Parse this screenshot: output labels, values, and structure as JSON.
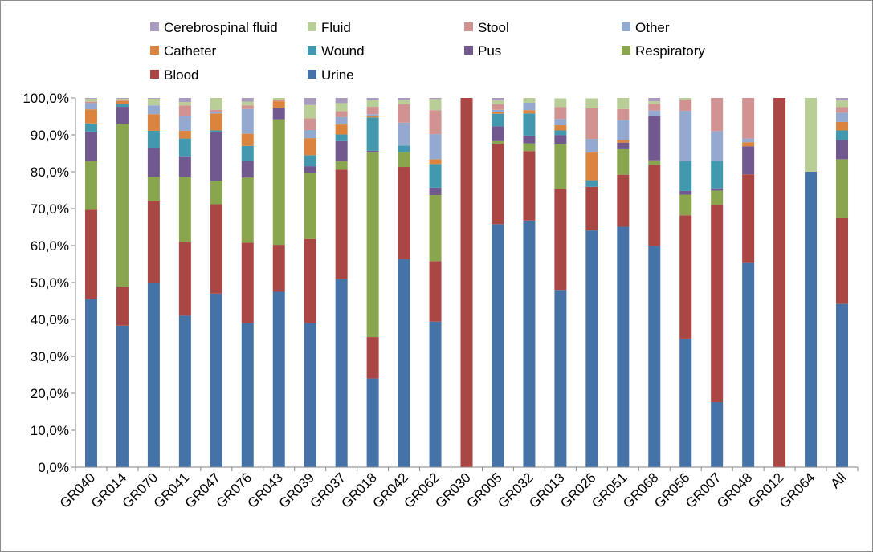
{
  "chart_data": {
    "type": "bar",
    "stacked": true,
    "title": "",
    "xlabel": "",
    "ylabel": "",
    "ylim": [
      0,
      100
    ],
    "ytick_step": 10,
    "ytick_format": "comma-decimal-percent",
    "grid": false,
    "legend_position": "top",
    "categories": [
      "GR040",
      "GR014",
      "GR070",
      "GR041",
      "GR047",
      "GR076",
      "GR043",
      "GR039",
      "GR037",
      "GR018",
      "GR042",
      "GR062",
      "GR030",
      "GR005",
      "GR032",
      "GR013",
      "GR026",
      "GR051",
      "GR068",
      "GR056",
      "GR007",
      "GR048",
      "GR012",
      "GR064",
      "All"
    ],
    "series": [
      {
        "name": "Urine",
        "color": "#4572a7",
        "values": [
          45.5,
          38.3,
          50.0,
          41.0,
          47.0,
          39.0,
          47.5,
          39.0,
          51.0,
          24.0,
          56.3,
          39.4,
          0,
          65.8,
          66.8,
          48.0,
          64.1,
          65.1,
          59.9,
          34.8,
          17.6,
          55.3,
          0,
          80.0,
          44.2
        ]
      },
      {
        "name": "Blood",
        "color": "#aa4643",
        "values": [
          24.2,
          10.6,
          22.0,
          20.0,
          24.2,
          21.8,
          12.7,
          22.8,
          29.6,
          11.2,
          25.0,
          16.4,
          100,
          21.8,
          18.8,
          27.3,
          11.8,
          14.1,
          22.0,
          33.4,
          53.4,
          24.0,
          100,
          0,
          23.2
        ]
      },
      {
        "name": "Respiratory",
        "color": "#89a54e",
        "values": [
          13.2,
          44.1,
          6.6,
          17.7,
          6.4,
          17.6,
          34.0,
          17.9,
          2.2,
          50.0,
          4.0,
          17.9,
          0,
          0.7,
          2.1,
          12.3,
          0,
          6.9,
          1.2,
          5.6,
          3.9,
          0,
          0,
          0,
          16.0
        ]
      },
      {
        "name": "Pus",
        "color": "#71588f",
        "values": [
          8.0,
          4.6,
          7.9,
          5.5,
          13.1,
          4.6,
          3.2,
          1.8,
          5.5,
          0.5,
          0,
          2.0,
          0,
          4.0,
          2.1,
          2.3,
          0,
          1.8,
          12.0,
          1.0,
          0.6,
          7.6,
          0,
          0,
          5.2
        ]
      },
      {
        "name": "Wound",
        "color": "#4198af",
        "values": [
          2.2,
          0.8,
          4.6,
          4.8,
          0.5,
          4.0,
          0,
          3.0,
          1.8,
          9.0,
          1.8,
          6.4,
          0,
          3.4,
          6.0,
          1.3,
          1.8,
          0,
          0,
          8.1,
          7.5,
          0,
          0,
          0,
          2.6
        ]
      },
      {
        "name": "Catheter",
        "color": "#db843d",
        "values": [
          3.8,
          0.8,
          4.5,
          2.1,
          4.6,
          3.3,
          1.7,
          4.6,
          2.7,
          0.4,
          0,
          1.3,
          0,
          0.5,
          0.9,
          1.4,
          7.5,
          0.6,
          0,
          0,
          0,
          1.1,
          0,
          0,
          2.3
        ]
      },
      {
        "name": "Other",
        "color": "#93a9cf",
        "values": [
          1.7,
          0,
          2.4,
          3.9,
          0.5,
          6.7,
          0,
          2.2,
          2.0,
          0.5,
          6.2,
          6.8,
          0,
          0.6,
          2.0,
          1.7,
          3.7,
          5.5,
          1.5,
          13.6,
          8.0,
          1.0,
          0,
          0,
          2.5
        ]
      },
      {
        "name": "Stool",
        "color": "#d19392",
        "values": [
          0.4,
          0.3,
          0,
          3.0,
          0.5,
          1.0,
          0.4,
          3.2,
          1.6,
          2.0,
          5.0,
          6.5,
          0,
          1.5,
          0,
          3.2,
          8.3,
          3.0,
          1.8,
          3.0,
          9.0,
          11.0,
          0,
          0,
          1.5
        ]
      },
      {
        "name": "Fluid",
        "color": "#b9cd96",
        "values": [
          0.8,
          0.3,
          1.8,
          0.9,
          3.2,
          1.0,
          0.5,
          3.6,
          2.2,
          1.8,
          1.2,
          3.0,
          0,
          1.0,
          1.3,
          2.4,
          2.7,
          3.0,
          0.7,
          0.5,
          0,
          0,
          0,
          20.0,
          1.8
        ]
      },
      {
        "name": "Cerebrospinal fluid",
        "color": "#a99bbd",
        "values": [
          0.2,
          0.2,
          0.2,
          1.1,
          0,
          1.0,
          0,
          2.0,
          1.4,
          0.6,
          0.5,
          0.3,
          0,
          0.7,
          0,
          0,
          0,
          0,
          0.9,
          0,
          0,
          0,
          0,
          0,
          0.7
        ]
      }
    ],
    "legend_order": [
      "Cerebrospinal fluid",
      "Fluid",
      "Stool",
      "Other",
      "Catheter",
      "Wound",
      "Pus",
      "Respiratory",
      "Blood",
      "Urine"
    ]
  }
}
